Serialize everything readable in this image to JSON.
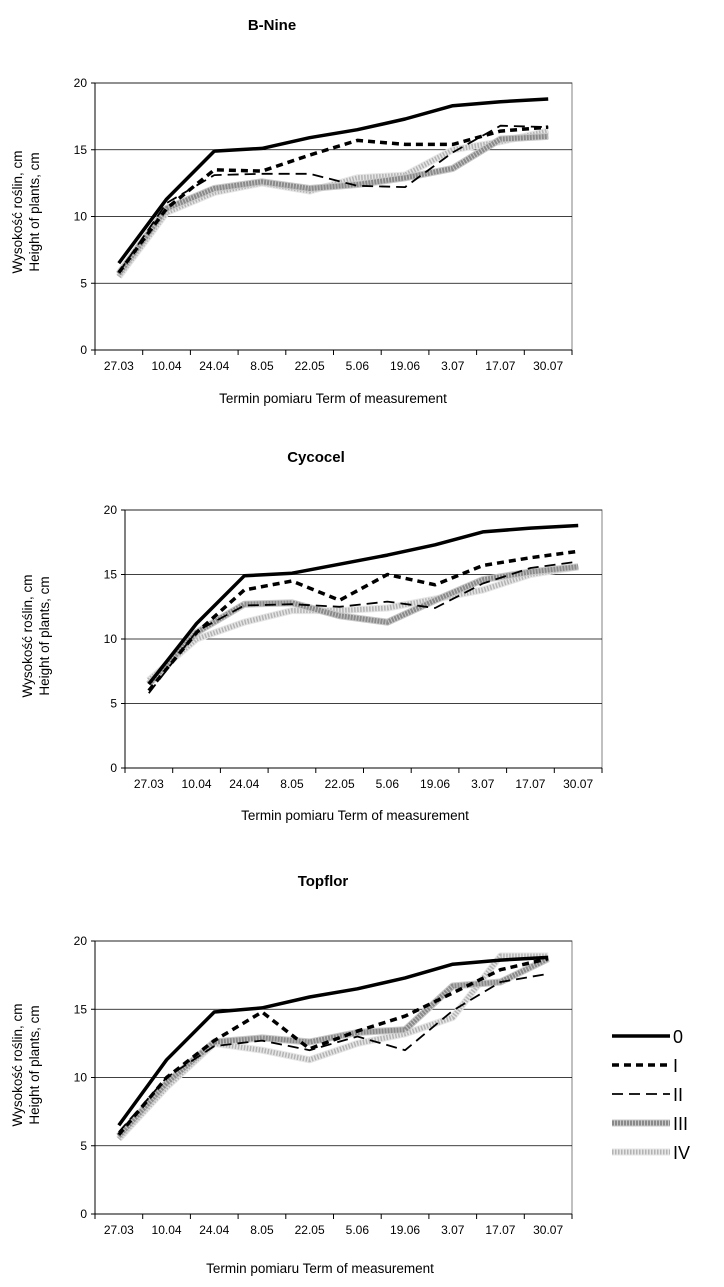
{
  "chart_data": [
    {
      "type": "line",
      "title": "B-Nine",
      "xlabel": "Termin pomiaru Term of measurement",
      "ylabel_line1": "Wysokość roślin, cm",
      "ylabel_line2": "Height of plants, cm",
      "ylim": [
        0,
        20
      ],
      "yticks": [
        "0",
        "5",
        "10",
        "15",
        "20"
      ],
      "grid": true,
      "categories": [
        "27.03",
        "10.04",
        "24.04",
        "8.05",
        "22.05",
        "5.06",
        "19.06",
        "3.07",
        "17.07",
        "30.07"
      ],
      "series": [
        {
          "name": "0",
          "values": [
            6.5,
            11.3,
            14.9,
            15.1,
            15.9,
            16.5,
            17.3,
            18.3,
            18.6,
            18.8
          ]
        },
        {
          "name": "I",
          "values": [
            5.8,
            10.6,
            13.5,
            13.4,
            14.6,
            15.7,
            15.4,
            15.4,
            16.4,
            16.7
          ]
        },
        {
          "name": "II",
          "values": [
            5.8,
            11.0,
            13.1,
            13.2,
            13.2,
            12.3,
            12.2,
            14.8,
            16.8,
            16.7
          ]
        },
        {
          "name": "III",
          "values": [
            5.7,
            10.6,
            12.1,
            12.6,
            12.1,
            12.4,
            12.9,
            13.6,
            15.8,
            16.0
          ]
        },
        {
          "name": "IV",
          "values": [
            5.5,
            10.3,
            11.8,
            12.5,
            11.9,
            12.9,
            13.1,
            15.0,
            15.6,
            16.4
          ]
        }
      ]
    },
    {
      "type": "line",
      "title": "Cycocel",
      "xlabel": "Termin pomiaru  Term of measurement",
      "ylabel_line1": "Wysokość roślin, cm",
      "ylabel_line2": "Height of plants, cm",
      "ylim": [
        0,
        20
      ],
      "yticks": [
        "0",
        "5",
        "10",
        "15",
        "20"
      ],
      "grid": true,
      "categories": [
        "27.03",
        "10.04",
        "24.04",
        "8.05",
        "22.05",
        "5.06",
        "19.06",
        "3.07",
        "17.07",
        "30.07"
      ],
      "series": [
        {
          "name": "0",
          "values": [
            6.5,
            11.2,
            14.9,
            15.1,
            15.8,
            16.5,
            17.3,
            18.3,
            18.6,
            18.8
          ]
        },
        {
          "name": "I",
          "values": [
            6.0,
            10.5,
            13.8,
            14.5,
            13.0,
            15.0,
            14.2,
            15.7,
            16.3,
            16.8
          ]
        },
        {
          "name": "II",
          "values": [
            5.8,
            10.6,
            12.6,
            12.7,
            12.5,
            12.9,
            12.4,
            14.3,
            15.5,
            16.0
          ]
        },
        {
          "name": "III",
          "values": [
            6.5,
            10.5,
            12.7,
            12.8,
            11.8,
            11.3,
            13.0,
            14.6,
            15.2,
            15.6
          ]
        },
        {
          "name": "IV",
          "values": [
            6.8,
            10.0,
            11.3,
            12.2,
            12.2,
            12.4,
            13.1,
            13.8,
            15.0,
            15.6
          ]
        }
      ]
    },
    {
      "type": "line",
      "title": "Topflor",
      "xlabel": "Termin pomiaru Term of measurement",
      "ylabel_line1": "Wysokość roślin, cm",
      "ylabel_line2": "Height of plants, cm",
      "ylim": [
        0,
        20
      ],
      "yticks": [
        "0",
        "5",
        "10",
        "15",
        "20"
      ],
      "grid": true,
      "legend_position": "right",
      "categories": [
        "27.03",
        "10.04",
        "24.04",
        "8.05",
        "22.05",
        "5.06",
        "19.06",
        "3.07",
        "17.07",
        "30.07"
      ],
      "series": [
        {
          "name": "0",
          "values": [
            6.5,
            11.3,
            14.8,
            15.1,
            15.9,
            16.5,
            17.3,
            18.3,
            18.6,
            18.8
          ]
        },
        {
          "name": "I",
          "values": [
            5.8,
            10.0,
            12.7,
            14.8,
            12.1,
            13.4,
            14.5,
            16.2,
            17.9,
            18.7
          ]
        },
        {
          "name": "II",
          "values": [
            6.0,
            10.0,
            12.3,
            12.7,
            12.0,
            13.0,
            12.0,
            14.9,
            17.0,
            17.6
          ]
        },
        {
          "name": "III",
          "values": [
            5.7,
            9.6,
            12.6,
            12.9,
            12.6,
            13.3,
            13.5,
            16.7,
            17.0,
            18.7
          ]
        },
        {
          "name": "IV",
          "values": [
            5.5,
            9.3,
            12.5,
            12.0,
            11.3,
            12.5,
            13.2,
            14.4,
            18.9,
            18.9
          ]
        }
      ]
    }
  ],
  "legend": {
    "items": [
      "0",
      "I",
      "II",
      "III",
      "IV"
    ]
  }
}
